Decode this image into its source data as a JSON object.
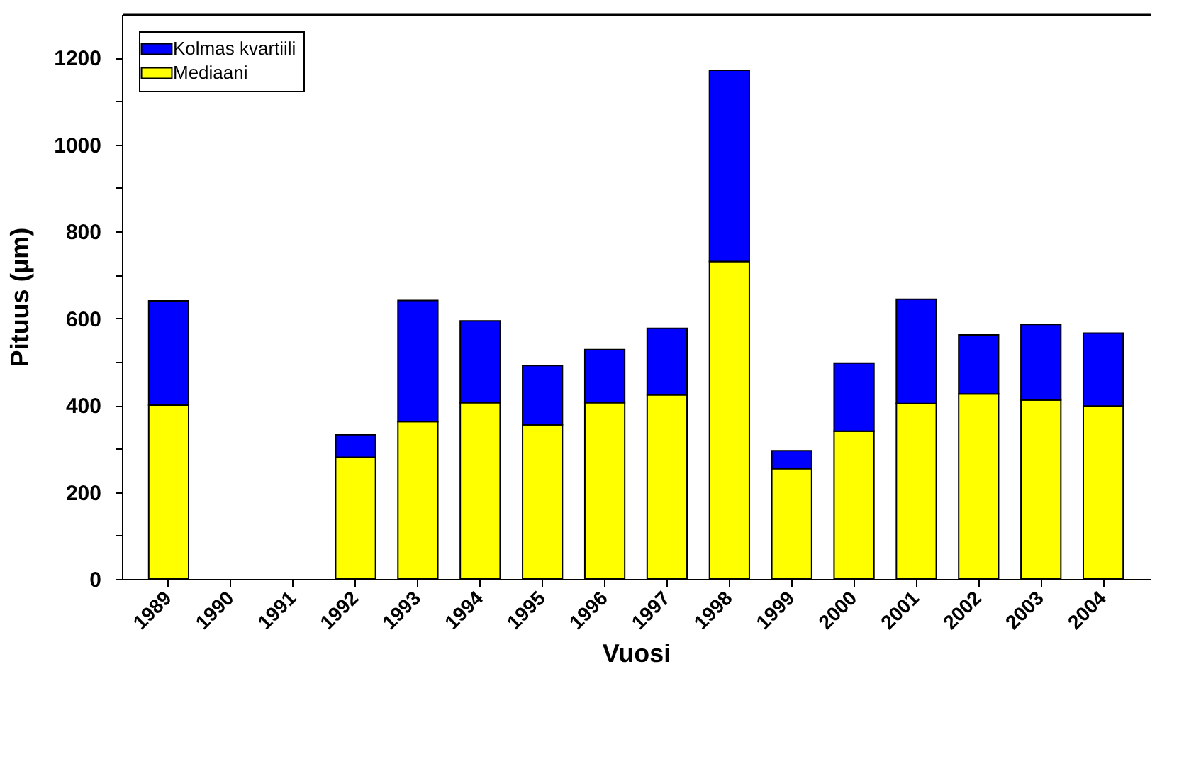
{
  "chart_data": {
    "type": "bar",
    "xlabel": "Vuosi",
    "ylabel": "Pituus (µm)",
    "categories": [
      "1989",
      "1990",
      "1991",
      "1992",
      "1993",
      "1994",
      "1995",
      "1996",
      "1997",
      "1998",
      "1999",
      "2000",
      "2001",
      "2002",
      "2003",
      "2004"
    ],
    "stacked": true,
    "series": [
      {
        "name": "Mediaani",
        "color": "#ffff00",
        "values": [
          400,
          null,
          null,
          280,
          362,
          406,
          355,
          406,
          424,
          731,
          254,
          340,
          404,
          426,
          412,
          398
        ]
      },
      {
        "name": "Kolmas kvartiili",
        "color": "#0000ff",
        "values": [
          240,
          null,
          null,
          52,
          279,
          188,
          136,
          122,
          153,
          440,
          41,
          157,
          240,
          136,
          174,
          168
        ]
      }
    ],
    "ylim": [
      0,
      1300
    ],
    "yticks": [
      0,
      {
        "value": 100,
        "label": null
      },
      200,
      {
        "value": 300,
        "label": null
      },
      400,
      {
        "value": 500,
        "label": null
      },
      600,
      {
        "value": 700,
        "label": null
      },
      800,
      {
        "value": 900,
        "label": null
      },
      1000,
      {
        "value": 1100,
        "label": null
      },
      1200
    ],
    "grid": false,
    "legend": "top left"
  }
}
